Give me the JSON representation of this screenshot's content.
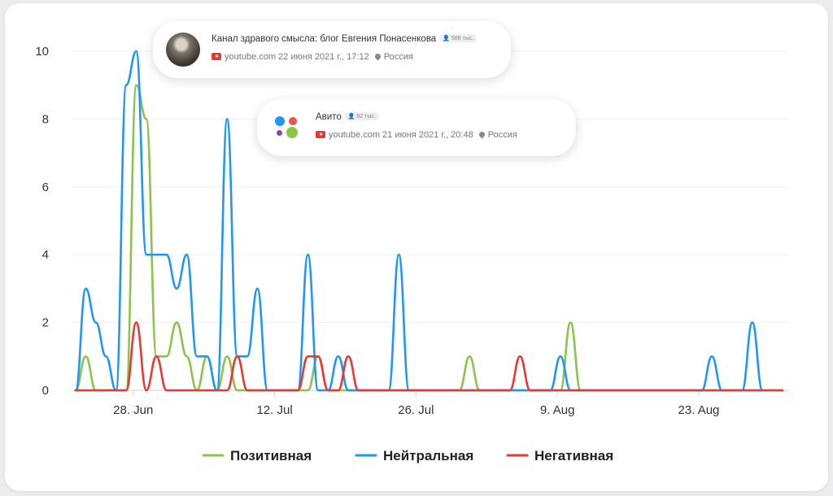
{
  "chart_data": {
    "type": "line",
    "y_ticks": [
      "0",
      "2",
      "4",
      "6",
      "8",
      "10"
    ],
    "ylim": [
      0,
      10
    ],
    "x_ticks": [
      "28. Jun",
      "12. Jul",
      "26. Jul",
      "9. Aug",
      "23. Aug"
    ],
    "legend_position": "bottom",
    "grid": true,
    "series": [
      {
        "name": "Позитивная",
        "color": "#8cc34a",
        "points": [
          [
            0,
            0
          ],
          [
            1,
            1
          ],
          [
            2,
            0
          ],
          [
            5,
            0
          ],
          [
            6,
            9
          ],
          [
            7,
            8
          ],
          [
            8,
            1
          ],
          [
            9,
            1
          ],
          [
            10,
            2
          ],
          [
            11,
            1
          ],
          [
            12,
            0
          ],
          [
            13,
            1
          ],
          [
            14,
            0
          ],
          [
            15,
            1
          ],
          [
            16,
            0
          ],
          [
            23,
            0
          ],
          [
            24,
            1
          ],
          [
            25,
            0
          ],
          [
            38,
            0
          ],
          [
            39,
            1
          ],
          [
            40,
            0
          ],
          [
            48,
            0
          ],
          [
            49,
            2
          ],
          [
            50,
            0
          ],
          [
            70,
            0
          ]
        ]
      },
      {
        "name": "Нейтральная",
        "color": "#2196f3",
        "points": [
          [
            0,
            0
          ],
          [
            1,
            3
          ],
          [
            2,
            2
          ],
          [
            3,
            1
          ],
          [
            4,
            0
          ],
          [
            5,
            9
          ],
          [
            6,
            10
          ],
          [
            7,
            4
          ],
          [
            8,
            4
          ],
          [
            9,
            4
          ],
          [
            10,
            3
          ],
          [
            11,
            4
          ],
          [
            12,
            1
          ],
          [
            13,
            1
          ],
          [
            14,
            0
          ],
          [
            15,
            8
          ],
          [
            16,
            1
          ],
          [
            17,
            1
          ],
          [
            18,
            3
          ],
          [
            19,
            0
          ],
          [
            22,
            0
          ],
          [
            23,
            4
          ],
          [
            24,
            0
          ],
          [
            25,
            0
          ],
          [
            26,
            1
          ],
          [
            27,
            0
          ],
          [
            31,
            0
          ],
          [
            32,
            4
          ],
          [
            33,
            0
          ],
          [
            47,
            0
          ],
          [
            48,
            1
          ],
          [
            49,
            0
          ],
          [
            62,
            0
          ],
          [
            63,
            1
          ],
          [
            64,
            0
          ],
          [
            66,
            0
          ],
          [
            67,
            2
          ],
          [
            68,
            0
          ]
        ]
      },
      {
        "name": "Негативная",
        "color": "#e53935",
        "points": [
          [
            0,
            0
          ],
          [
            5,
            0
          ],
          [
            6,
            2
          ],
          [
            7,
            0
          ],
          [
            8,
            1
          ],
          [
            9,
            0
          ],
          [
            15,
            0
          ],
          [
            16,
            1
          ],
          [
            17,
            0
          ],
          [
            22,
            0
          ],
          [
            23,
            1
          ],
          [
            24,
            1
          ],
          [
            25,
            0
          ],
          [
            26,
            0
          ],
          [
            27,
            1
          ],
          [
            28,
            0
          ],
          [
            43,
            0
          ],
          [
            44,
            1
          ],
          [
            45,
            0
          ],
          [
            70,
            0
          ]
        ]
      }
    ]
  },
  "popups": [
    {
      "title": "Канал здравого смысла: блог Евгения Понасенкова",
      "badge": "588 тыс.",
      "source": "youtube.com",
      "date": "22 июня 2021 г., 17:12",
      "region": "Россия"
    },
    {
      "title": "Авито",
      "badge": "82 тыс.",
      "source": "youtube.com",
      "date": "21 июня 2021 г., 20:48",
      "region": "Россия"
    }
  ]
}
